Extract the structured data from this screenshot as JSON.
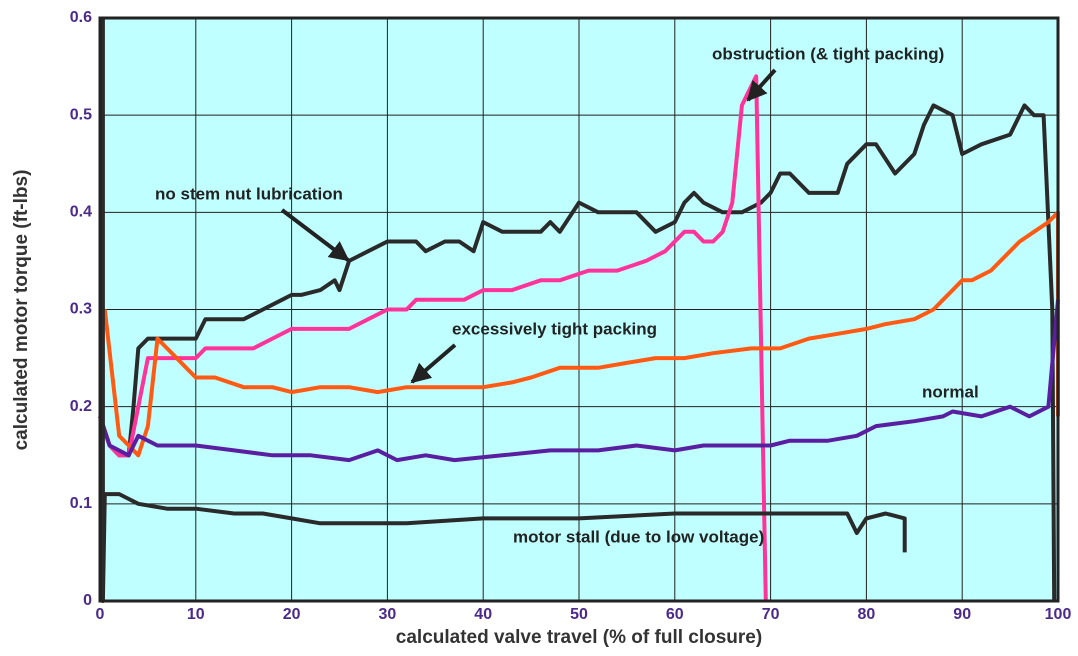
{
  "chart_data": {
    "type": "line",
    "xlabel": "calculated valve travel (% of full closure)",
    "ylabel": "calculated motor torque (ft-lbs)",
    "xlim": [
      0,
      100
    ],
    "xticks": [
      0,
      10,
      20,
      30,
      40,
      50,
      60,
      70,
      80,
      90,
      100
    ],
    "ylim": [
      0,
      0.6
    ],
    "yticks": [
      0,
      0.1,
      0.2,
      0.3,
      0.4,
      0.5,
      0.6
    ],
    "grid": true,
    "series": [
      {
        "name": "no stem nut lubrication",
        "color": "#2a2a2a",
        "x": [
          0,
          1,
          2,
          3,
          3.5,
          4,
          5,
          7,
          9,
          10,
          11,
          13,
          15,
          17,
          19,
          20,
          21,
          23,
          24.5,
          25,
          26,
          28,
          30,
          33,
          34,
          36,
          37.5,
          39,
          40,
          42,
          46,
          47,
          48,
          50,
          52,
          56,
          58,
          60,
          61,
          62,
          63,
          65,
          67,
          69,
          70,
          71,
          72,
          74,
          76,
          77,
          78,
          80,
          81,
          83,
          85,
          86,
          87,
          89,
          90,
          92,
          95,
          96.5,
          97.5,
          98.5,
          99.4,
          99.6
        ],
        "values": [
          0.19,
          0.16,
          0.15,
          0.15,
          0.2,
          0.26,
          0.27,
          0.27,
          0.27,
          0.27,
          0.29,
          0.29,
          0.29,
          0.3,
          0.31,
          0.315,
          0.315,
          0.32,
          0.33,
          0.32,
          0.35,
          0.36,
          0.37,
          0.37,
          0.36,
          0.37,
          0.37,
          0.36,
          0.39,
          0.38,
          0.38,
          0.39,
          0.38,
          0.41,
          0.4,
          0.4,
          0.38,
          0.39,
          0.41,
          0.42,
          0.41,
          0.4,
          0.4,
          0.41,
          0.42,
          0.44,
          0.44,
          0.42,
          0.42,
          0.42,
          0.45,
          0.47,
          0.47,
          0.44,
          0.46,
          0.49,
          0.51,
          0.5,
          0.46,
          0.47,
          0.48,
          0.51,
          0.5,
          0.5,
          0.3,
          0
        ]
      },
      {
        "name": "obstruction (& tight packing)",
        "color": "#ff3399",
        "x": [
          0,
          1,
          2,
          3,
          4,
          5,
          7,
          9,
          10,
          11,
          14,
          16,
          18,
          20,
          22,
          26,
          28,
          30,
          32,
          33,
          36,
          38,
          40,
          43,
          46,
          48,
          51,
          54,
          57,
          59,
          61,
          62,
          63,
          64,
          65,
          66,
          67,
          68,
          68.5,
          69.5
        ],
        "values": [
          0.19,
          0.16,
          0.15,
          0.15,
          0.2,
          0.25,
          0.25,
          0.25,
          0.25,
          0.26,
          0.26,
          0.26,
          0.27,
          0.28,
          0.28,
          0.28,
          0.29,
          0.3,
          0.3,
          0.31,
          0.31,
          0.31,
          0.32,
          0.32,
          0.33,
          0.33,
          0.34,
          0.34,
          0.35,
          0.36,
          0.38,
          0.38,
          0.37,
          0.37,
          0.38,
          0.41,
          0.51,
          0.53,
          0.54,
          0
        ]
      },
      {
        "name": "excessively tight packing",
        "color": "#ff5a14",
        "x": [
          0.5,
          2,
          3,
          4,
          5,
          6,
          7,
          9,
          10,
          12,
          15,
          18,
          20,
          23,
          26,
          29,
          32,
          36,
          40,
          43,
          45,
          48,
          52,
          55,
          58,
          61,
          64,
          68,
          71,
          74,
          77,
          80,
          82,
          85,
          87,
          88,
          89,
          90,
          91,
          93,
          95,
          96,
          97.5,
          99,
          100,
          100
        ],
        "values": [
          0.3,
          0.17,
          0.16,
          0.15,
          0.18,
          0.27,
          0.26,
          0.24,
          0.23,
          0.23,
          0.22,
          0.22,
          0.215,
          0.22,
          0.22,
          0.215,
          0.22,
          0.22,
          0.22,
          0.225,
          0.23,
          0.24,
          0.24,
          0.245,
          0.25,
          0.25,
          0.255,
          0.26,
          0.26,
          0.27,
          0.275,
          0.28,
          0.285,
          0.29,
          0.3,
          0.31,
          0.32,
          0.33,
          0.33,
          0.34,
          0.36,
          0.37,
          0.38,
          0.39,
          0.4,
          0.19
        ]
      },
      {
        "name": "normal",
        "color": "#5a1fa0",
        "x": [
          0,
          1,
          3,
          4,
          6,
          10,
          14,
          18,
          22,
          26,
          29,
          31,
          34,
          37,
          42,
          47,
          52,
          56,
          60,
          63,
          67,
          70,
          72,
          76,
          79,
          81,
          85,
          88,
          89,
          92,
          95,
          97,
          99,
          100
        ],
        "values": [
          0.19,
          0.16,
          0.15,
          0.17,
          0.16,
          0.16,
          0.155,
          0.15,
          0.15,
          0.145,
          0.155,
          0.145,
          0.15,
          0.145,
          0.15,
          0.155,
          0.155,
          0.16,
          0.155,
          0.16,
          0.16,
          0.16,
          0.165,
          0.165,
          0.17,
          0.18,
          0.185,
          0.19,
          0.195,
          0.19,
          0.2,
          0.19,
          0.2,
          0.31
        ]
      },
      {
        "name": "motor stall (due to low voltage)",
        "color": "#2a2a2a",
        "x": [
          0.3,
          0.3,
          0.5,
          2,
          4,
          7,
          10,
          14,
          17,
          20,
          23,
          27,
          32,
          40,
          50,
          60,
          70,
          78,
          79,
          80,
          82,
          84,
          84
        ],
        "values": [
          0.6,
          0,
          0.11,
          0.11,
          0.1,
          0.095,
          0.095,
          0.09,
          0.09,
          0.085,
          0.08,
          0.08,
          0.08,
          0.085,
          0.085,
          0.09,
          0.09,
          0.09,
          0.07,
          0.085,
          0.09,
          0.085,
          0.05
        ]
      }
    ]
  }
}
